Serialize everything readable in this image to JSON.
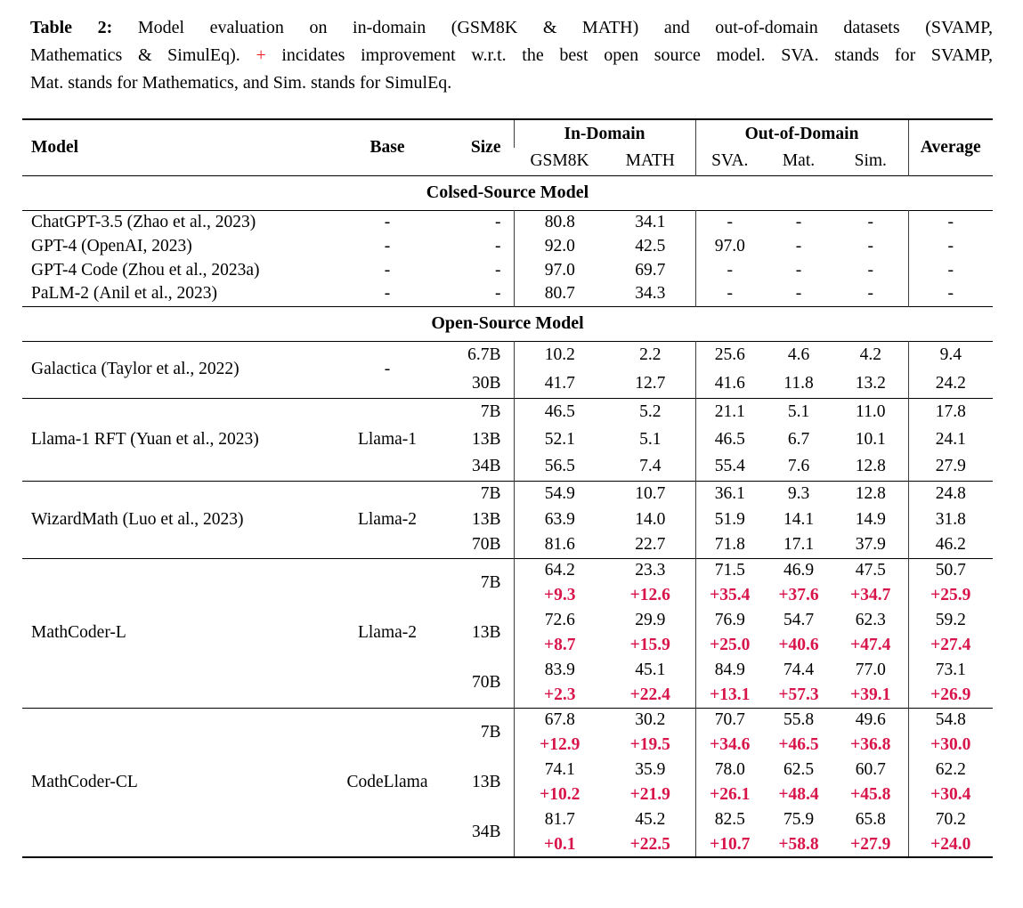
{
  "caption": {
    "label": "Table 2:",
    "line1": "Model evaluation on in-domain (GSM8K & MATH) and out-of-domain datasets (SVAMP,",
    "line2_pre": "Mathematics & SimulEq).",
    "line2_plus": "+",
    "line2_post": "incidates improvement w.r.t. the best open source model. SVA. stands for SVAMP,",
    "line3": "Mat. stands for Mathematics, and Sim. stands for SimulEq."
  },
  "colors": {
    "delta_red": "#d8154a",
    "caption_plus_red": "#ed1c24"
  },
  "table": {
    "header": {
      "model": "Model",
      "base": "Base",
      "size": "Size",
      "in_domain": "In-Domain",
      "out_of_domain": "Out-of-Domain",
      "average": "Average",
      "sub": [
        "GSM8K",
        "MATH",
        "SVA.",
        "Mat.",
        "Sim."
      ]
    },
    "sections": [
      {
        "title": "Colsed-Source Model",
        "groups": [
          {
            "id": "closed-source",
            "kind": "flat",
            "rows": [
              {
                "model": "ChatGPT-3.5 (Zhao et al., 2023)",
                "base": "-",
                "size": "-",
                "values": [
                  "80.8",
                  "34.1",
                  "-",
                  "-",
                  "-",
                  "-"
                ]
              },
              {
                "model": "GPT-4 (OpenAI, 2023)",
                "base": "-",
                "size": "-",
                "values": [
                  "92.0",
                  "42.5",
                  "97.0",
                  "-",
                  "-",
                  "-"
                ]
              },
              {
                "model": "GPT-4 Code (Zhou et al., 2023a)",
                "base": "-",
                "size": "-",
                "values": [
                  "97.0",
                  "69.7",
                  "-",
                  "-",
                  "-",
                  "-"
                ]
              },
              {
                "model": "PaLM-2 (Anil et al., 2023)",
                "base": "-",
                "size": "-",
                "values": [
                  "80.7",
                  "34.3",
                  "-",
                  "-",
                  "-",
                  "-"
                ]
              }
            ]
          }
        ]
      },
      {
        "title": "Open-Source Model",
        "groups": [
          {
            "id": "galactica",
            "kind": "spanned",
            "model": "Galactica (Taylor et al., 2022)",
            "base": "-",
            "entries": [
              {
                "size": "6.7B",
                "values": [
                  "10.2",
                  "2.2",
                  "25.6",
                  "4.6",
                  "4.2",
                  "9.4"
                ]
              },
              {
                "size": "30B",
                "values": [
                  "41.7",
                  "12.7",
                  "41.6",
                  "11.8",
                  "13.2",
                  "24.2"
                ]
              }
            ]
          },
          {
            "id": "llama1-rft",
            "kind": "spanned",
            "model": "Llama-1 RFT (Yuan et al., 2023)",
            "base": "Llama-1",
            "entries": [
              {
                "size": "7B",
                "values": [
                  "46.5",
                  "5.2",
                  "21.1",
                  "5.1",
                  "11.0",
                  "17.8"
                ]
              },
              {
                "size": "13B",
                "values": [
                  "52.1",
                  "5.1",
                  "46.5",
                  "6.7",
                  "10.1",
                  "24.1"
                ]
              },
              {
                "size": "34B",
                "values": [
                  "56.5",
                  "7.4",
                  "55.4",
                  "7.6",
                  "12.8",
                  "27.9"
                ]
              }
            ]
          },
          {
            "id": "wizardmath",
            "kind": "spanned",
            "model": "WizardMath (Luo et al., 2023)",
            "base": "Llama-2",
            "entries": [
              {
                "size": "7B",
                "values": [
                  "54.9",
                  "10.7",
                  "36.1",
                  "9.3",
                  "12.8",
                  "24.8"
                ]
              },
              {
                "size": "13B",
                "values": [
                  "63.9",
                  "14.0",
                  "51.9",
                  "14.1",
                  "14.9",
                  "31.8"
                ]
              },
              {
                "size": "70B",
                "values": [
                  "81.6",
                  "22.7",
                  "71.8",
                  "17.1",
                  "37.9",
                  "46.2"
                ]
              }
            ]
          },
          {
            "id": "mathcoder-l",
            "kind": "spanned",
            "model": "MathCoder-L",
            "base": "Llama-2",
            "entries": [
              {
                "size": "7B",
                "values": [
                  "64.2",
                  "23.3",
                  "71.5",
                  "46.9",
                  "47.5",
                  "50.7"
                ],
                "deltas": [
                  "+9.3",
                  "+12.6",
                  "+35.4",
                  "+37.6",
                  "+34.7",
                  "+25.9"
                ]
              },
              {
                "size": "13B",
                "values": [
                  "72.6",
                  "29.9",
                  "76.9",
                  "54.7",
                  "62.3",
                  "59.2"
                ],
                "deltas": [
                  "+8.7",
                  "+15.9",
                  "+25.0",
                  "+40.6",
                  "+47.4",
                  "+27.4"
                ]
              },
              {
                "size": "70B",
                "values": [
                  "83.9",
                  "45.1",
                  "84.9",
                  "74.4",
                  "77.0",
                  "73.1"
                ],
                "deltas": [
                  "+2.3",
                  "+22.4",
                  "+13.1",
                  "+57.3",
                  "+39.1",
                  "+26.9"
                ]
              }
            ]
          },
          {
            "id": "mathcoder-cl",
            "kind": "spanned",
            "model": "MathCoder-CL",
            "base": "CodeLlama",
            "entries": [
              {
                "size": "7B",
                "values": [
                  "67.8",
                  "30.2",
                  "70.7",
                  "55.8",
                  "49.6",
                  "54.8"
                ],
                "deltas": [
                  "+12.9",
                  "+19.5",
                  "+34.6",
                  "+46.5",
                  "+36.8",
                  "+30.0"
                ]
              },
              {
                "size": "13B",
                "values": [
                  "74.1",
                  "35.9",
                  "78.0",
                  "62.5",
                  "60.7",
                  "62.2"
                ],
                "deltas": [
                  "+10.2",
                  "+21.9",
                  "+26.1",
                  "+48.4",
                  "+45.8",
                  "+30.4"
                ]
              },
              {
                "size": "34B",
                "values": [
                  "81.7",
                  "45.2",
                  "82.5",
                  "75.9",
                  "65.8",
                  "70.2"
                ],
                "deltas": [
                  "+0.1",
                  "+22.5",
                  "+10.7",
                  "+58.8",
                  "+27.9",
                  "+24.0"
                ]
              }
            ]
          }
        ]
      }
    ]
  }
}
